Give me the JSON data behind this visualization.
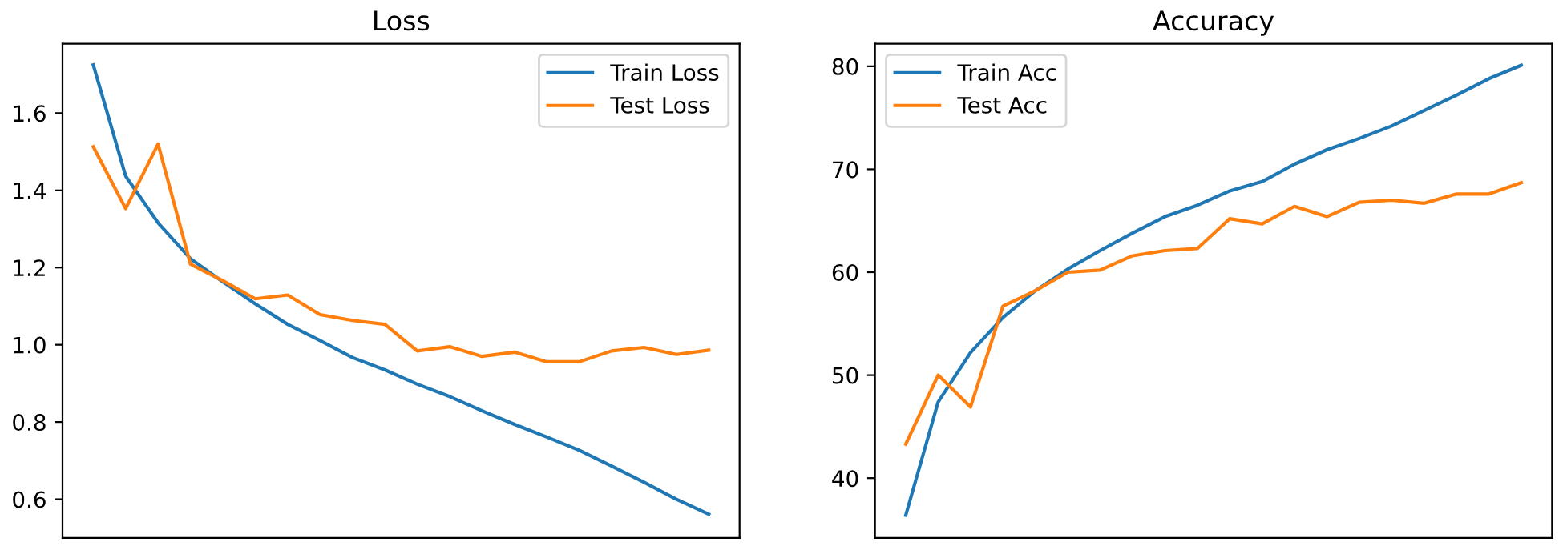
{
  "chart_data": [
    {
      "type": "line",
      "title": "Loss",
      "categories": [
        null,
        null,
        null,
        null,
        null,
        null,
        null,
        null,
        null,
        null,
        null,
        null,
        null,
        null,
        null,
        null,
        null,
        null,
        null,
        null
      ],
      "series": [
        {
          "name": "Train Loss",
          "color": "#1f77b4",
          "values": [
            1.725,
            1.437,
            1.316,
            1.223,
            1.163,
            1.106,
            1.053,
            1.011,
            0.967,
            0.935,
            0.898,
            0.866,
            0.829,
            0.794,
            0.761,
            0.727,
            0.686,
            0.644,
            0.6,
            0.561
          ]
        },
        {
          "name": "Test Loss",
          "color": "#ff7f0e",
          "values": [
            1.513,
            1.353,
            1.52,
            1.209,
            1.166,
            1.119,
            1.129,
            1.078,
            1.063,
            1.053,
            0.984,
            0.995,
            0.97,
            0.981,
            0.956,
            0.956,
            0.984,
            0.993,
            0.975,
            0.986
          ]
        }
      ],
      "ylim": [
        0.5,
        1.78
      ],
      "yticks": [
        0.6,
        0.8,
        {
          "value": 1,
          "label": "1.0"
        },
        1.2,
        1.4,
        1.6
      ],
      "legend": "top right"
    },
    {
      "type": "line",
      "title": "Accuracy",
      "categories": [
        null,
        null,
        null,
        null,
        null,
        null,
        null,
        null,
        null,
        null,
        null,
        null,
        null,
        null,
        null,
        null,
        null,
        null,
        null,
        null
      ],
      "series": [
        {
          "name": "Train Acc",
          "color": "#1f77b4",
          "values": [
            36.4,
            47.4,
            52.2,
            55.6,
            58.2,
            60.3,
            62.1,
            63.8,
            65.4,
            66.5,
            67.9,
            68.8,
            70.5,
            71.9,
            73.0,
            74.2,
            75.7,
            77.2,
            78.8,
            80.1
          ]
        },
        {
          "name": "Test Acc",
          "color": "#ff7f0e",
          "values": [
            43.3,
            50.0,
            46.9,
            56.7,
            58.2,
            60.0,
            60.2,
            61.6,
            62.1,
            62.3,
            65.2,
            64.7,
            66.4,
            65.4,
            66.8,
            67.0,
            66.7,
            67.6,
            67.6,
            68.7
          ]
        }
      ],
      "ylim": [
        34.2,
        82.2
      ],
      "yticks": [
        40,
        50,
        60,
        70,
        80
      ],
      "legend": "top left"
    }
  ]
}
